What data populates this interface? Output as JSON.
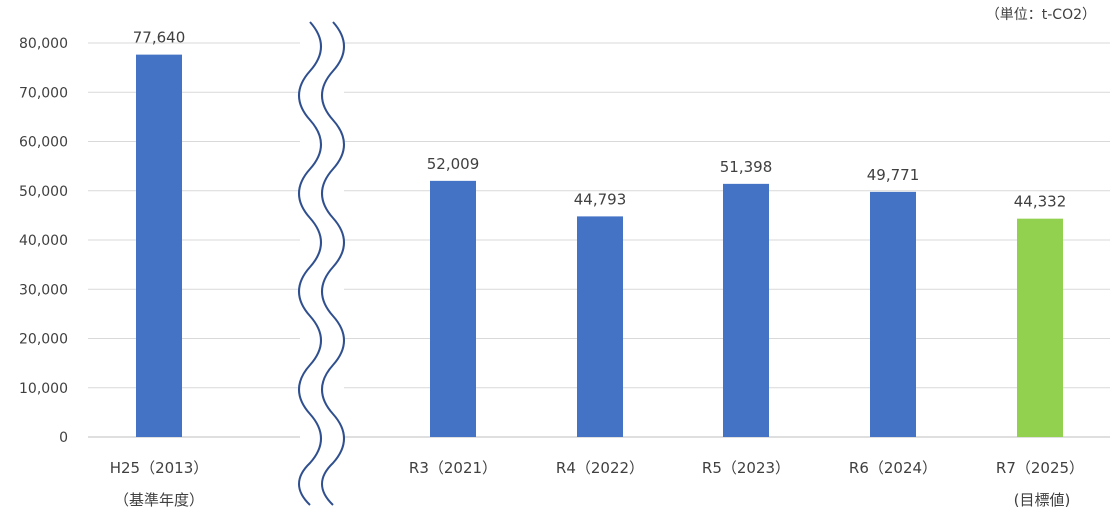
{
  "chart_data": {
    "type": "bar",
    "unit_label": "（単位：t-CO2）",
    "ylim": [
      0,
      80000
    ],
    "yticks": [
      "0",
      "10,000",
      "20,000",
      "30,000",
      "40,000",
      "50,000",
      "60,000",
      "70,000",
      "80,000"
    ],
    "grid": true,
    "axis_break_after_index": 0,
    "categories": [
      {
        "line1": "H25（2013）",
        "line2": "（基準年度）"
      },
      {
        "line1": "R3（2021）",
        "line2": ""
      },
      {
        "line1": "R4（2022）",
        "line2": ""
      },
      {
        "line1": "R5（2023）",
        "line2": ""
      },
      {
        "line1": "R6（2024）",
        "line2": ""
      },
      {
        "line1": "R7（2025）",
        "line2": "(目標値)"
      }
    ],
    "values": [
      77640,
      52009,
      44793,
      51398,
      49771,
      44332
    ],
    "value_labels": [
      "77,640",
      "52,009",
      "44,793",
      "51,398",
      "49,771",
      "44,332"
    ],
    "colors": [
      "#4472c4",
      "#4472c4",
      "#4472c4",
      "#4472c4",
      "#4472c4",
      "#92d050"
    ]
  }
}
